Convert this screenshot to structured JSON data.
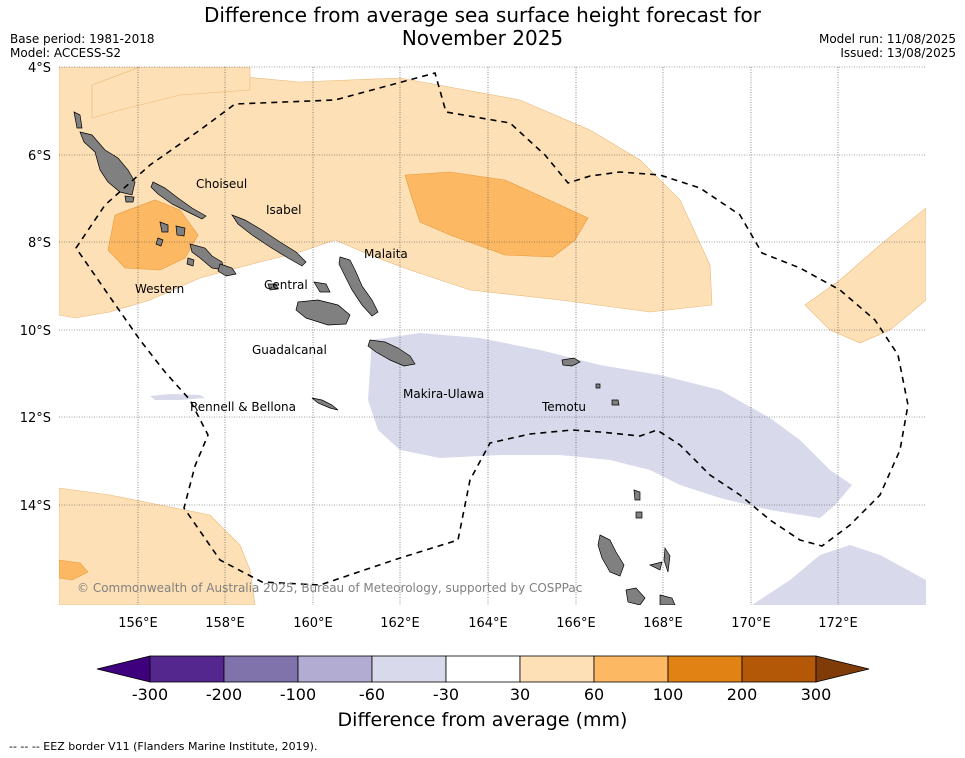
{
  "title_line1": "Difference from average sea surface height forecast for",
  "title_line2": "November 2025",
  "base_period": "Base period: 1981-2018",
  "model": "Model: ACCESS-S2",
  "model_run": "Model run: 11/08/2025",
  "issued": "Issued: 13/08/2025",
  "latitude_labels": [
    "4°S",
    "6°S",
    "8°S",
    "10°S",
    "12°S",
    "14°S"
  ],
  "longitude_labels": [
    "156°E",
    "158°E",
    "160°E",
    "162°E",
    "164°E",
    "166°E",
    "168°E",
    "170°E",
    "172°E"
  ],
  "places": [
    {
      "name": "Choiseul"
    },
    {
      "name": "Isabel"
    },
    {
      "name": "Malaita"
    },
    {
      "name": "Western"
    },
    {
      "name": "Central"
    },
    {
      "name": "Guadalcanal"
    },
    {
      "name": "Makira-Ulawa"
    },
    {
      "name": "Temotu"
    },
    {
      "name": "Rennell & Bellona"
    }
  ],
  "copyright": "© Commonwealth of Australia 2025, Bureau of Meteorology, supported by COSPPac",
  "colorbar": {
    "title": "Difference from average (mm)",
    "ticks": [
      "-300",
      "-200",
      "-100",
      "-60",
      "-30",
      "30",
      "60",
      "100",
      "200",
      "300"
    ],
    "colors": [
      "#3f007d",
      "#54278f",
      "#8073ac",
      "#b2abd2",
      "#d8daeb",
      "#ffffff",
      "#fee0b6",
      "#fdb863",
      "#e08214",
      "#b35806",
      "#7f3b08"
    ]
  },
  "legend_note": "-- -- -- EEZ border V11 (Flanders Marine Institute, 2019).",
  "map_colors": {
    "land": "#808080",
    "anomaly_30_60": "#fee0b6",
    "anomaly_60_100": "#fdb863",
    "anomaly_neg30_neg60": "#d8daeb"
  }
}
